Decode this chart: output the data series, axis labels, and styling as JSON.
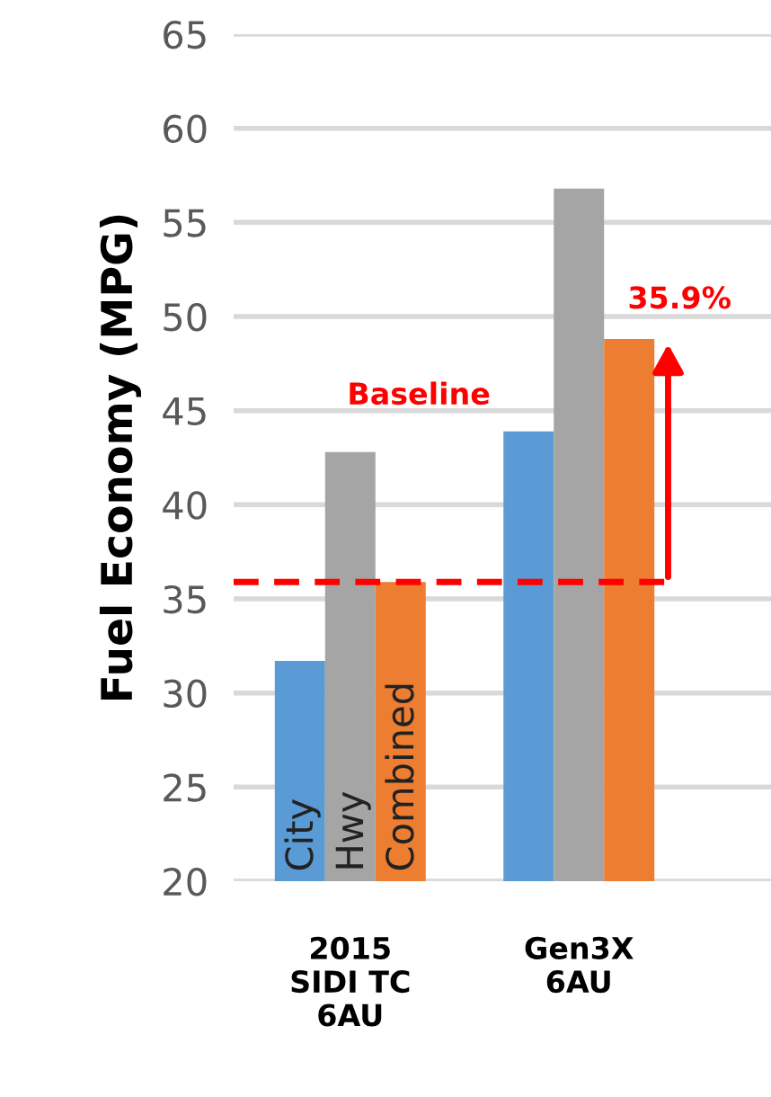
{
  "chart_data": {
    "type": "bar",
    "ylabel": "Fuel Economy (MPG)",
    "categories": [
      "2015\nSIDI TC\n6AU",
      "Gen3X\n6AU"
    ],
    "series": [
      {
        "name": "City",
        "color": "#5b9bd5",
        "values": [
          31.7,
          43.9
        ]
      },
      {
        "name": "Hwy",
        "color": "#a5a5a5",
        "values": [
          42.8,
          56.8
        ]
      },
      {
        "name": "Combined",
        "color": "#ed7d31",
        "values": [
          35.9,
          48.8
        ]
      }
    ],
    "ylim": [
      20,
      65
    ],
    "yticks": [
      20,
      25,
      30,
      35,
      40,
      45,
      50,
      55,
      60,
      65
    ],
    "grid": "y",
    "legend": false,
    "ref_lines": [
      {
        "axis": "y",
        "value": 35.9,
        "label": "Baseline",
        "color": "#ff0000",
        "line_style": "dashed"
      }
    ],
    "annotations": [
      "35.9%"
    ]
  }
}
